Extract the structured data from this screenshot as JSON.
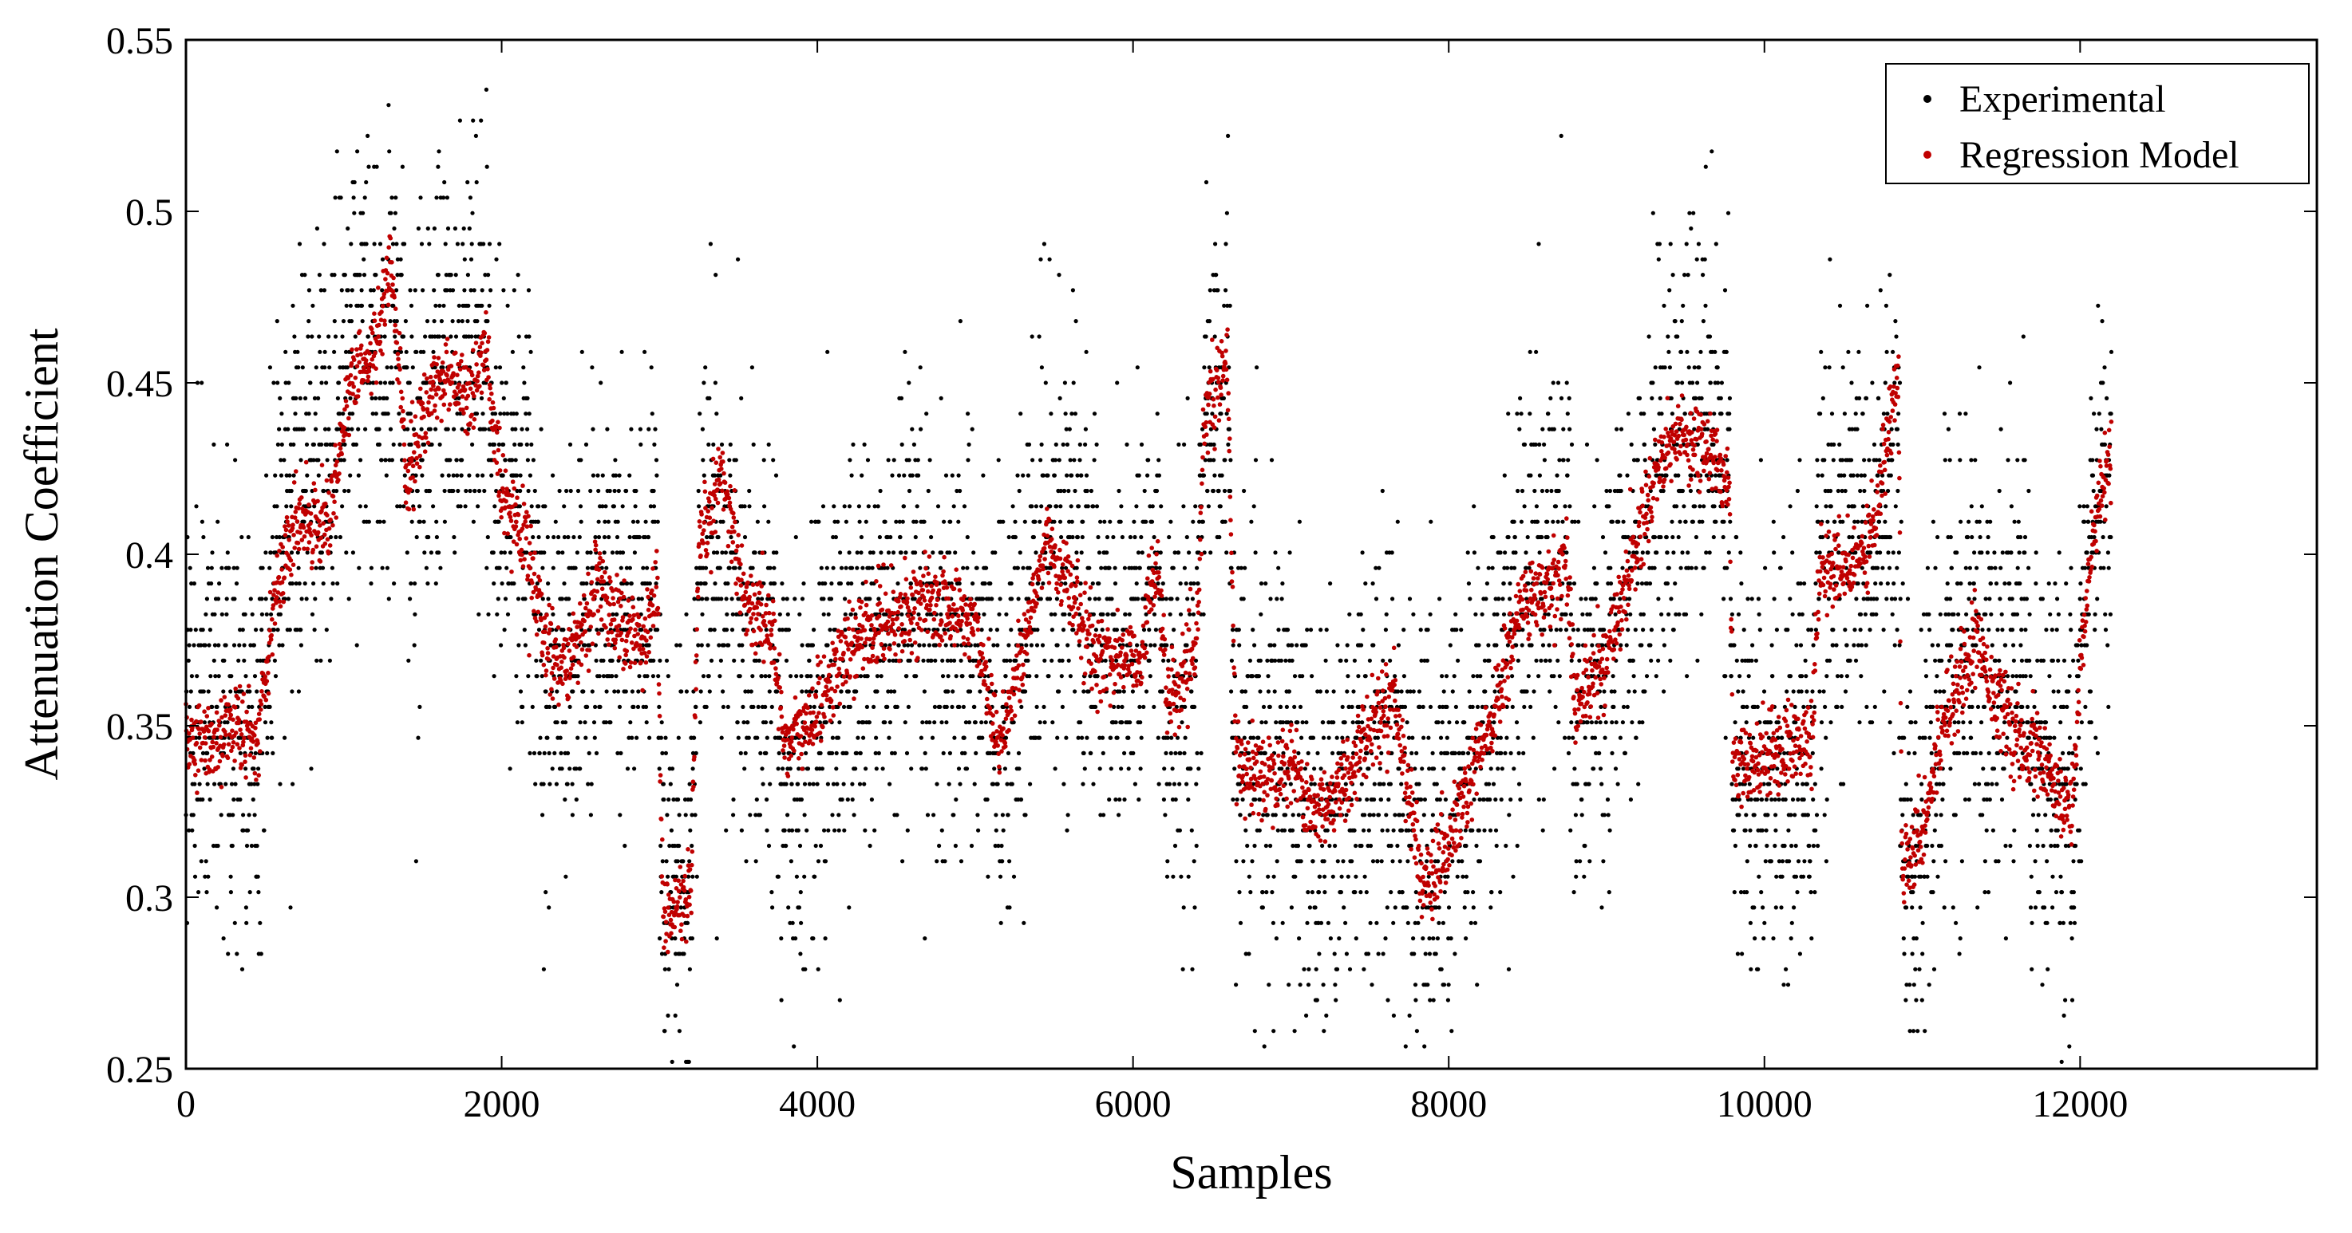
{
  "chart_data": {
    "type": "scatter",
    "title": "",
    "xlabel": "Samples",
    "ylabel": "Attenuation Coefficient",
    "xlim": [
      0,
      13500
    ],
    "ylim": [
      0.25,
      0.55
    ],
    "xticks": [
      0,
      2000,
      4000,
      6000,
      8000,
      10000,
      12000
    ],
    "yticks": [
      0.25,
      0.3,
      0.35,
      0.4,
      0.45,
      0.5,
      0.55
    ],
    "xtick_labels": [
      "0",
      "2000",
      "4000",
      "6000",
      "8000",
      "10000",
      "12000"
    ],
    "ytick_labels": [
      "0.25",
      "0.3",
      "0.35",
      "0.4",
      "0.45",
      "0.5",
      "0.55"
    ],
    "grid": false,
    "legend_position": "top-right",
    "series": [
      {
        "name": "Experimental",
        "color": "#000000",
        "marker": "dot",
        "trend": [
          [
            0,
            0.355
          ],
          [
            150,
            0.36
          ],
          [
            300,
            0.35
          ],
          [
            450,
            0.345
          ],
          [
            550,
            0.385
          ],
          [
            700,
            0.42
          ],
          [
            900,
            0.43
          ],
          [
            1050,
            0.46
          ],
          [
            1200,
            0.455
          ],
          [
            1350,
            0.46
          ],
          [
            1450,
            0.42
          ],
          [
            1600,
            0.45
          ],
          [
            1750,
            0.46
          ],
          [
            1900,
            0.46
          ],
          [
            2000,
            0.42
          ],
          [
            2150,
            0.41
          ],
          [
            2300,
            0.37
          ],
          [
            2450,
            0.37
          ],
          [
            2600,
            0.39
          ],
          [
            2750,
            0.385
          ],
          [
            2900,
            0.38
          ],
          [
            2990,
            0.4
          ],
          [
            3020,
            0.3
          ],
          [
            3200,
            0.3
          ],
          [
            3250,
            0.4
          ],
          [
            3400,
            0.4
          ],
          [
            3550,
            0.38
          ],
          [
            3700,
            0.38
          ],
          [
            3800,
            0.33
          ],
          [
            3950,
            0.35
          ],
          [
            4100,
            0.36
          ],
          [
            4250,
            0.37
          ],
          [
            4400,
            0.375
          ],
          [
            4600,
            0.38
          ],
          [
            4800,
            0.375
          ],
          [
            5000,
            0.375
          ],
          [
            5150,
            0.35
          ],
          [
            5300,
            0.37
          ],
          [
            5450,
            0.41
          ],
          [
            5600,
            0.4
          ],
          [
            5750,
            0.38
          ],
          [
            5900,
            0.375
          ],
          [
            6050,
            0.38
          ],
          [
            6150,
            0.4
          ],
          [
            6220,
            0.355
          ],
          [
            6400,
            0.36
          ],
          [
            6450,
            0.44
          ],
          [
            6600,
            0.45
          ],
          [
            6650,
            0.34
          ],
          [
            6800,
            0.34
          ],
          [
            7000,
            0.34
          ],
          [
            7150,
            0.325
          ],
          [
            7300,
            0.33
          ],
          [
            7450,
            0.34
          ],
          [
            7650,
            0.345
          ],
          [
            7850,
            0.31
          ],
          [
            8000,
            0.32
          ],
          [
            8150,
            0.34
          ],
          [
            8300,
            0.355
          ],
          [
            8450,
            0.39
          ],
          [
            8650,
            0.4
          ],
          [
            8750,
            0.41
          ],
          [
            8800,
            0.355
          ],
          [
            9000,
            0.37
          ],
          [
            9200,
            0.4
          ],
          [
            9350,
            0.425
          ],
          [
            9500,
            0.43
          ],
          [
            9650,
            0.435
          ],
          [
            9780,
            0.43
          ],
          [
            9800,
            0.345
          ],
          [
            10000,
            0.34
          ],
          [
            10150,
            0.345
          ],
          [
            10300,
            0.345
          ],
          [
            10350,
            0.39
          ],
          [
            10550,
            0.4
          ],
          [
            10700,
            0.41
          ],
          [
            10850,
            0.41
          ],
          [
            10870,
            0.315
          ],
          [
            11000,
            0.32
          ],
          [
            11150,
            0.36
          ],
          [
            11350,
            0.37
          ],
          [
            11500,
            0.36
          ],
          [
            11650,
            0.385
          ],
          [
            11700,
            0.335
          ],
          [
            11850,
            0.335
          ],
          [
            11950,
            0.32
          ],
          [
            12000,
            0.37
          ],
          [
            12100,
            0.41
          ],
          [
            12200,
            0.42
          ]
        ],
        "spread": 0.03,
        "point_count": 6500
      },
      {
        "name": "Regression Model",
        "color": "#c00000",
        "marker": "dot",
        "trend": [
          [
            0,
            0.345
          ],
          [
            150,
            0.345
          ],
          [
            300,
            0.35
          ],
          [
            450,
            0.345
          ],
          [
            550,
            0.385
          ],
          [
            700,
            0.41
          ],
          [
            900,
            0.41
          ],
          [
            1050,
            0.45
          ],
          [
            1200,
            0.46
          ],
          [
            1300,
            0.485
          ],
          [
            1400,
            0.42
          ],
          [
            1500,
            0.44
          ],
          [
            1650,
            0.455
          ],
          [
            1800,
            0.445
          ],
          [
            1900,
            0.46
          ],
          [
            2000,
            0.415
          ],
          [
            2150,
            0.405
          ],
          [
            2300,
            0.37
          ],
          [
            2450,
            0.37
          ],
          [
            2600,
            0.39
          ],
          [
            2750,
            0.38
          ],
          [
            2900,
            0.375
          ],
          [
            2990,
            0.39
          ],
          [
            3020,
            0.295
          ],
          [
            3200,
            0.3
          ],
          [
            3250,
            0.4
          ],
          [
            3400,
            0.425
          ],
          [
            3550,
            0.385
          ],
          [
            3700,
            0.38
          ],
          [
            3800,
            0.345
          ],
          [
            3950,
            0.35
          ],
          [
            4100,
            0.365
          ],
          [
            4250,
            0.375
          ],
          [
            4400,
            0.38
          ],
          [
            4600,
            0.385
          ],
          [
            4800,
            0.385
          ],
          [
            5000,
            0.38
          ],
          [
            5150,
            0.345
          ],
          [
            5300,
            0.37
          ],
          [
            5450,
            0.405
          ],
          [
            5600,
            0.39
          ],
          [
            5750,
            0.37
          ],
          [
            5900,
            0.37
          ],
          [
            6050,
            0.37
          ],
          [
            6150,
            0.4
          ],
          [
            6220,
            0.355
          ],
          [
            6400,
            0.37
          ],
          [
            6450,
            0.44
          ],
          [
            6600,
            0.455
          ],
          [
            6650,
            0.34
          ],
          [
            6800,
            0.335
          ],
          [
            7000,
            0.34
          ],
          [
            7150,
            0.325
          ],
          [
            7300,
            0.33
          ],
          [
            7450,
            0.345
          ],
          [
            7650,
            0.36
          ],
          [
            7850,
            0.3
          ],
          [
            8000,
            0.315
          ],
          [
            8150,
            0.335
          ],
          [
            8300,
            0.355
          ],
          [
            8450,
            0.385
          ],
          [
            8650,
            0.39
          ],
          [
            8750,
            0.4
          ],
          [
            8800,
            0.355
          ],
          [
            9000,
            0.37
          ],
          [
            9200,
            0.405
          ],
          [
            9350,
            0.43
          ],
          [
            9500,
            0.435
          ],
          [
            9650,
            0.43
          ],
          [
            9780,
            0.42
          ],
          [
            9800,
            0.34
          ],
          [
            10000,
            0.34
          ],
          [
            10150,
            0.345
          ],
          [
            10300,
            0.345
          ],
          [
            10350,
            0.395
          ],
          [
            10550,
            0.395
          ],
          [
            10700,
            0.41
          ],
          [
            10850,
            0.455
          ],
          [
            10870,
            0.31
          ],
          [
            11000,
            0.32
          ],
          [
            11150,
            0.355
          ],
          [
            11350,
            0.375
          ],
          [
            11500,
            0.355
          ],
          [
            11650,
            0.34
          ],
          [
            11700,
            0.345
          ],
          [
            11850,
            0.33
          ],
          [
            11950,
            0.325
          ],
          [
            12000,
            0.37
          ],
          [
            12100,
            0.41
          ],
          [
            12200,
            0.43
          ]
        ],
        "spread": 0.006,
        "point_count": 4500
      }
    ]
  }
}
